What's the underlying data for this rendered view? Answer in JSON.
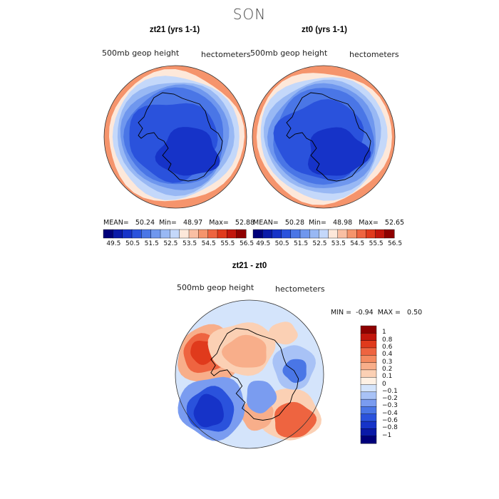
{
  "title": "SON",
  "palettes": {
    "abs": [
      "#00007a",
      "#0a1aa8",
      "#1633c8",
      "#2a52dc",
      "#4a76e6",
      "#6f97ee",
      "#98b8f4",
      "#c4d8fa",
      "#fde8da",
      "#f9bfa3",
      "#f5946c",
      "#ee6440",
      "#e03a1c",
      "#c2160c",
      "#8e0000"
    ],
    "diff": [
      "#00007a",
      "#0a1aa8",
      "#1633c8",
      "#2a52dc",
      "#4a76e6",
      "#7a9cf0",
      "#a8c2f6",
      "#d4e4fb",
      "#fff1e4",
      "#fbd0b4",
      "#f8ae8a",
      "#f48a60",
      "#ee6440",
      "#e03a1c",
      "#c2160c",
      "#8e0000"
    ],
    "coast": "#000000",
    "rim": "#333333"
  },
  "chart_data": [
    {
      "type": "heatmap",
      "id": "zt21",
      "title": "zt21 (yrs 1-1)",
      "left_label": "500mb geop height",
      "right_label": "hectometers",
      "stats": {
        "mean_label": "MEAN=",
        "mean": "50.24",
        "min_label": "Min=",
        "min": "48.97",
        "max_label": "Max=",
        "max": "52.88"
      },
      "colorbar_ticks": [
        "49.5",
        "50.5",
        "51.5",
        "52.5",
        "53.5",
        "54.5",
        "55.5",
        "56.5"
      ],
      "levels": [
        49.0,
        49.5,
        50.0,
        50.5,
        51.0,
        51.5,
        52.0,
        52.5,
        53.0,
        53.5,
        54.0,
        54.5,
        55.0,
        55.5,
        56.0,
        56.5
      ],
      "rings": [
        {
          "r": 1.0,
          "level": 10
        },
        {
          "r": 0.95,
          "level": 8
        },
        {
          "r": 0.89,
          "level": 7
        },
        {
          "r": 0.82,
          "level": 6
        },
        {
          "r": 0.76,
          "level": 5
        },
        {
          "r": 0.7,
          "level": 4
        }
      ]
    },
    {
      "type": "heatmap",
      "id": "zt0",
      "title": "zt0 (yrs 1-1)",
      "left_label": "500mb geop height",
      "right_label": "hectometers",
      "stats": {
        "mean_label": "MEAN=",
        "mean": "50.28",
        "min_label": "Min=",
        "min": "48.98",
        "max_label": "Max=",
        "max": "52.65"
      },
      "colorbar_ticks": [
        "49.5",
        "50.5",
        "51.5",
        "52.5",
        "53.5",
        "54.5",
        "55.5",
        "56.5"
      ],
      "levels": [
        49.0,
        49.5,
        50.0,
        50.5,
        51.0,
        51.5,
        52.0,
        52.5,
        53.0,
        53.5,
        54.0,
        54.5,
        55.0,
        55.5,
        56.0,
        56.5
      ],
      "rings": [
        {
          "r": 1.0,
          "level": 10
        },
        {
          "r": 0.95,
          "level": 8
        },
        {
          "r": 0.89,
          "level": 7
        },
        {
          "r": 0.82,
          "level": 6
        },
        {
          "r": 0.76,
          "level": 5
        },
        {
          "r": 0.7,
          "level": 4
        }
      ]
    },
    {
      "type": "heatmap",
      "id": "diff",
      "title": "zt21 - zt0",
      "left_label": "500mb geop height",
      "right_label": "hectometers",
      "stats": {
        "min_label": "MIN =",
        "min": "-0.94",
        "max_label": "MAX =",
        "max": "0.50"
      },
      "colorbar_ticks": [
        "1",
        "0.8",
        "0.6",
        "0.4",
        "0.3",
        "0.2",
        "0.1",
        "0",
        "-0.1",
        "-0.2",
        "-0.3",
        "-0.4",
        "-0.6",
        "-0.8",
        "-1"
      ],
      "levels": [
        -1,
        -0.8,
        -0.6,
        -0.4,
        -0.3,
        -0.2,
        -0.1,
        0,
        0.1,
        0.2,
        0.3,
        0.4,
        0.6,
        0.8,
        1
      ]
    }
  ]
}
